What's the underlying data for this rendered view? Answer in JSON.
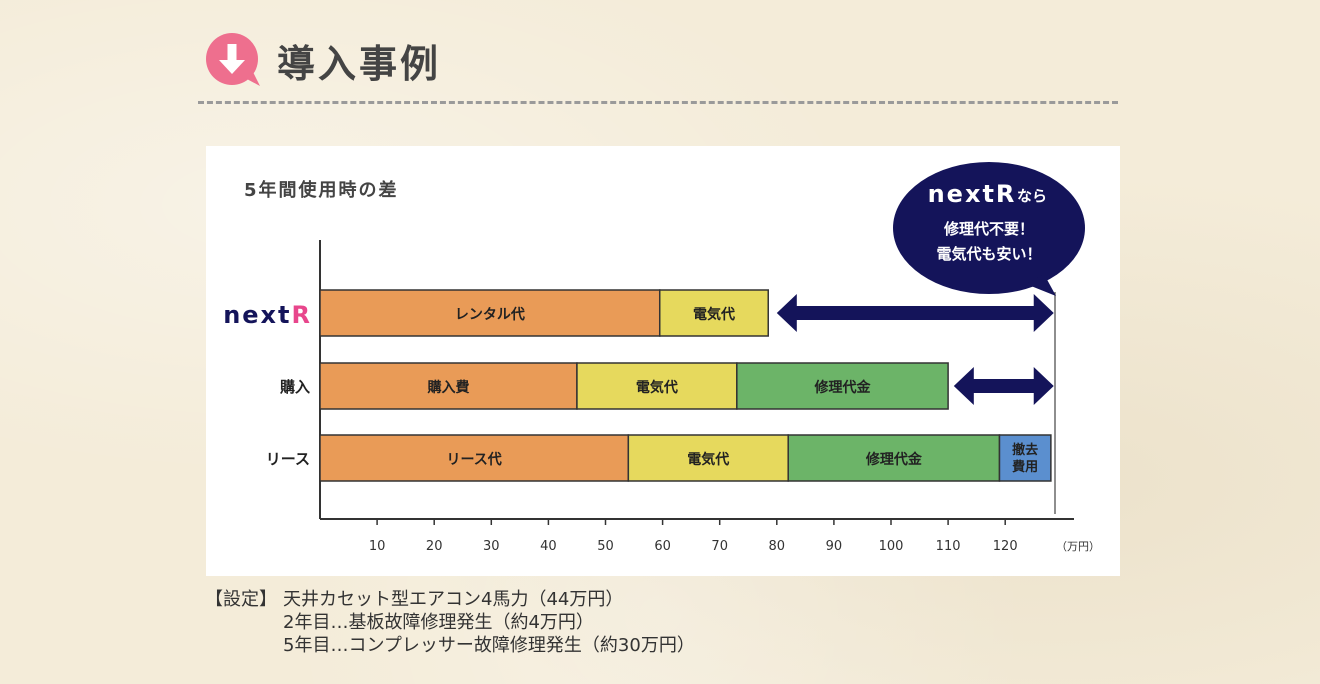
{
  "heading": {
    "title": "導入事例",
    "icon": "pink-speech-bubble-down-arrow-icon"
  },
  "callout": {
    "brand": "nextR",
    "suffix": "なら",
    "line1": "修理代不要！",
    "line2": "電気代も安い！"
  },
  "notes": {
    "label": "【設定】",
    "line1": "天井カセット型エアコン4馬力（44万円）",
    "line2": "2年目…基板故障修理発生（約4万円）",
    "line3": "5年目…コンプレッサー故障修理発生（約30万円）"
  },
  "colors": {
    "orange": "#e99b57",
    "yellow": "#e6d95d",
    "green": "#6cb468",
    "blue": "#5b8fcf",
    "navy": "#14145a",
    "brand_pink": "#e8468c"
  },
  "chart_data": {
    "type": "bar",
    "orientation": "horizontal-stacked",
    "title": "5年間使用時の差",
    "x_unit": "（万円）",
    "xlim": [
      0,
      129
    ],
    "x_ticks": [
      10,
      20,
      30,
      40,
      50,
      60,
      70,
      80,
      90,
      100,
      110,
      120
    ],
    "rows": [
      {
        "label": "nextR",
        "segments": [
          {
            "name": "レンタル代",
            "start": 0,
            "end": 59.5,
            "color": "#e99b57"
          },
          {
            "name": "電気代",
            "start": 59.5,
            "end": 78.5,
            "color": "#e6d95d"
          }
        ],
        "difference_arrow": [
          80,
          128.5
        ]
      },
      {
        "label": "購入",
        "segments": [
          {
            "name": "購入費",
            "start": 0,
            "end": 45,
            "color": "#e99b57"
          },
          {
            "name": "電気代",
            "start": 45,
            "end": 73,
            "color": "#e6d95d"
          },
          {
            "name": "修理代金",
            "start": 73,
            "end": 110,
            "color": "#6cb468"
          }
        ],
        "difference_arrow": [
          111,
          128.5
        ]
      },
      {
        "label": "リース",
        "segments": [
          {
            "name": "リース代",
            "start": 0,
            "end": 54,
            "color": "#e99b57"
          },
          {
            "name": "電気代",
            "start": 54,
            "end": 82,
            "color": "#e6d95d"
          },
          {
            "name": "修理代金",
            "start": 82,
            "end": 119,
            "color": "#6cb468"
          },
          {
            "name": "撤去費用",
            "start": 119,
            "end": 128,
            "color": "#5b8fcf"
          }
        ]
      }
    ]
  }
}
